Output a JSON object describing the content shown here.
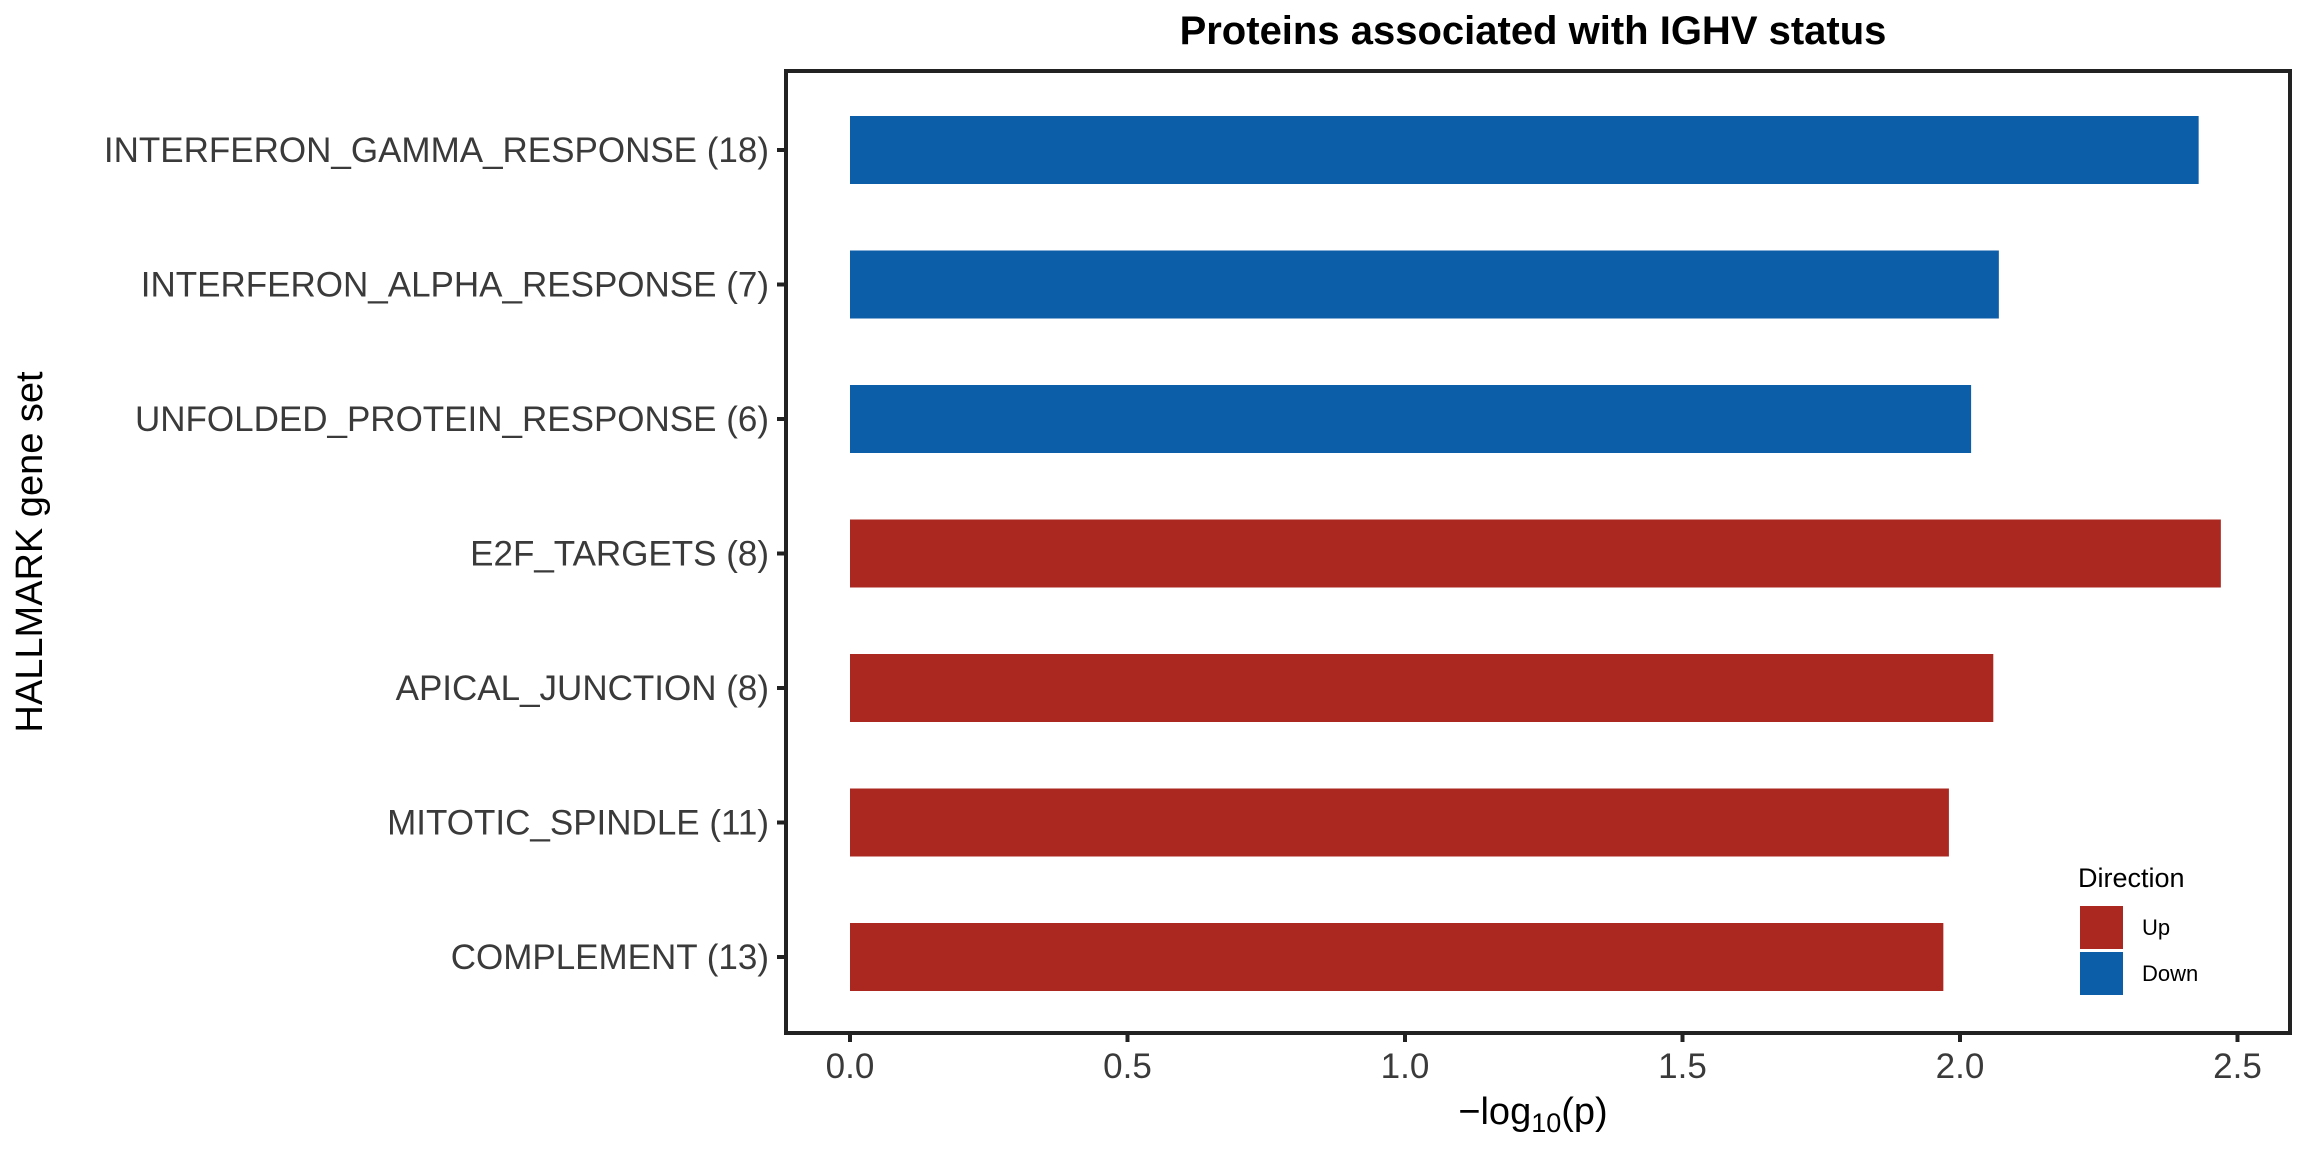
{
  "chart_data": {
    "type": "bar",
    "orientation": "horizontal",
    "title": "Proteins associated with IGHV status",
    "xlabel_prefix": "−log",
    "xlabel_subscript": "10",
    "xlabel_suffix": "(p)",
    "ylabel": "HALLMARK gene set",
    "xlim": [
      -0.1,
      2.6
    ],
    "xticks": [
      0.0,
      0.5,
      1.0,
      1.5,
      2.0,
      2.5
    ],
    "xtick_labels": [
      "0.0",
      "0.5",
      "1.0",
      "1.5",
      "2.0",
      "2.5"
    ],
    "categories": [
      "INTERFERON_GAMMA_RESPONSE (18)",
      "INTERFERON_ALPHA_RESPONSE (7)",
      "UNFOLDED_PROTEIN_RESPONSE (6)",
      "E2F_TARGETS (8)",
      "APICAL_JUNCTION (8)",
      "MITOTIC_SPINDLE (11)",
      "COMPLEMENT (13)"
    ],
    "values": [
      2.43,
      2.07,
      2.02,
      2.47,
      2.06,
      1.98,
      1.97
    ],
    "direction": [
      "Down",
      "Down",
      "Down",
      "Up",
      "Up",
      "Up",
      "Up"
    ],
    "grid": false,
    "legend": {
      "title": "Direction",
      "position": "bottom-right inside",
      "entries": [
        {
          "label": "Up",
          "color": "#ab2821"
        },
        {
          "label": "Down",
          "color": "#0d5ea8"
        }
      ]
    },
    "colors": {
      "Up": "#ab2821",
      "Down": "#0d5ea8"
    }
  }
}
